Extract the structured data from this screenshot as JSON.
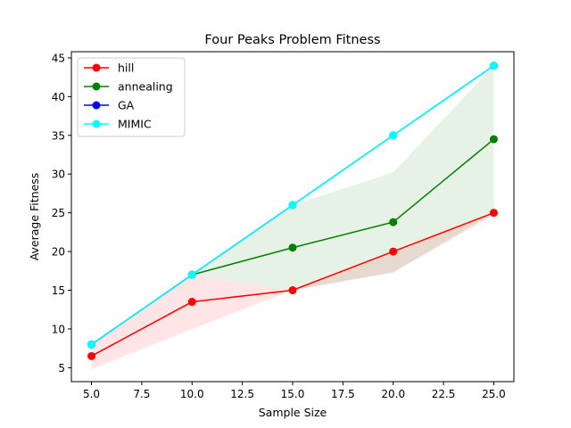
{
  "chart_data": {
    "type": "line",
    "title": "Four Peaks Problem Fitness",
    "xlabel": "Sample Size",
    "ylabel": "Average Fitness",
    "x": [
      5,
      10,
      15,
      20,
      25
    ],
    "xlim": [
      4,
      26
    ],
    "ylim": [
      3.2,
      45.8
    ],
    "xticks": [
      5.0,
      7.5,
      10.0,
      12.5,
      15.0,
      17.5,
      20.0,
      22.5,
      25.0
    ],
    "xtick_labels": [
      "5.0",
      "7.5",
      "10.0",
      "12.5",
      "15.0",
      "17.5",
      "20.0",
      "22.5",
      "25.0"
    ],
    "yticks": [
      5,
      10,
      15,
      20,
      25,
      30,
      35,
      40,
      45
    ],
    "ytick_labels": [
      "5",
      "10",
      "15",
      "20",
      "25",
      "30",
      "35",
      "40",
      "45"
    ],
    "grid": false,
    "legend_position": "top-left",
    "series": [
      {
        "name": "hill",
        "color": "#ff0000",
        "values": [
          6.5,
          13.5,
          15,
          20,
          25
        ],
        "band_lower": [
          4.8,
          10,
          15,
          17.3,
          24.7
        ],
        "band_upper": [
          8,
          17,
          15,
          20,
          25
        ]
      },
      {
        "name": "annealing",
        "color": "#008000",
        "values": [
          8,
          17,
          20.5,
          23.8,
          34.5
        ],
        "band_lower": [
          8,
          17,
          15,
          17.3,
          25
        ],
        "band_upper": [
          8,
          17,
          26,
          30.2,
          44
        ]
      },
      {
        "name": "GA",
        "color": "#0000ff",
        "values": [
          8,
          17,
          26,
          35,
          44
        ]
      },
      {
        "name": "MIMIC",
        "color": "#00ffff",
        "values": [
          8,
          17,
          26,
          35,
          44
        ]
      }
    ]
  }
}
